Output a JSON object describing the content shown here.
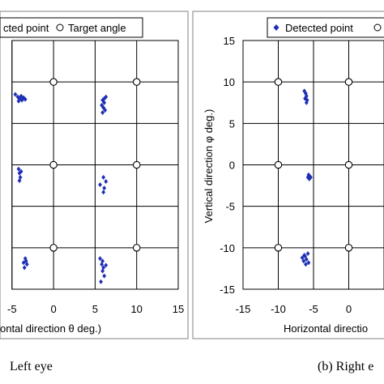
{
  "chart_data": [
    {
      "type": "scatter",
      "panel": "left",
      "caption": "Left eye",
      "xlabel": "ontal direction θ deg.)",
      "ylabel": "",
      "xlim": [
        -5,
        15
      ],
      "ylim": [
        -15,
        15
      ],
      "x_ticks": [
        -5,
        0,
        5,
        10,
        15
      ],
      "y_ticks": [],
      "grid": true,
      "legend": {
        "position": "top",
        "entries": [
          "cted point",
          "Target angle"
        ]
      },
      "series": [
        {
          "name": "Detected point",
          "marker": "diamond",
          "color": "#1f2fb5",
          "points": [
            [
              -4.6,
              8.5
            ],
            [
              -4.3,
              8.2
            ],
            [
              -4.1,
              8.0
            ],
            [
              -3.9,
              8.3
            ],
            [
              -3.8,
              7.8
            ],
            [
              -3.6,
              8.1
            ],
            [
              -4.2,
              7.7
            ],
            [
              -3.4,
              7.9
            ],
            [
              5.9,
              7.8
            ],
            [
              6.1,
              7.5
            ],
            [
              6.3,
              8.2
            ],
            [
              5.8,
              7.2
            ],
            [
              6.0,
              6.9
            ],
            [
              6.2,
              6.6
            ],
            [
              5.9,
              6.3
            ],
            [
              6.1,
              8.0
            ],
            [
              -4.2,
              -0.5
            ],
            [
              -4.1,
              -1.0
            ],
            [
              -4.0,
              -1.5
            ],
            [
              -4.1,
              -1.9
            ],
            [
              -3.9,
              -0.8
            ],
            [
              5.6,
              -2.4
            ],
            [
              6.0,
              -1.5
            ],
            [
              6.3,
              -2.0
            ],
            [
              6.1,
              -2.8
            ],
            [
              6.0,
              -3.3
            ],
            [
              -3.6,
              -11.8
            ],
            [
              -3.4,
              -11.3
            ],
            [
              -3.2,
              -12.0
            ],
            [
              -3.5,
              -12.4
            ],
            [
              -3.3,
              -11.6
            ],
            [
              5.6,
              -11.3
            ],
            [
              5.8,
              -12.0
            ],
            [
              6.0,
              -12.4
            ],
            [
              6.3,
              -12.1
            ],
            [
              5.9,
              -12.8
            ],
            [
              6.1,
              -13.4
            ],
            [
              5.7,
              -14.1
            ],
            [
              5.9,
              -11.6
            ]
          ]
        },
        {
          "name": "Target angle",
          "marker": "circle-open",
          "color": "#000000",
          "points": [
            [
              0,
              10
            ],
            [
              10,
              10
            ],
            [
              0,
              0
            ],
            [
              10,
              0
            ],
            [
              0,
              -10
            ],
            [
              10,
              -10
            ]
          ]
        }
      ]
    },
    {
      "type": "scatter",
      "panel": "right",
      "caption": "(b) Right e",
      "xlabel": "Horizontal directio",
      "ylabel": "Vertical direction φ deg.)",
      "xlim": [
        -15,
        5
      ],
      "ylim": [
        -15,
        15
      ],
      "x_ticks": [
        -15,
        -10,
        -5,
        0
      ],
      "y_ticks": [
        15,
        10,
        5,
        0,
        -5,
        -10,
        -15
      ],
      "grid": true,
      "legend": {
        "position": "top",
        "entries": [
          "Detected point"
        ]
      },
      "series": [
        {
          "name": "Detected point",
          "marker": "diamond",
          "color": "#1f2fb5",
          "points": [
            [
              -6.3,
              8.9
            ],
            [
              -6.1,
              8.6
            ],
            [
              -6.0,
              8.3
            ],
            [
              -6.2,
              8.0
            ],
            [
              -5.9,
              7.8
            ],
            [
              -6.0,
              7.5
            ],
            [
              -5.7,
              -1.2
            ],
            [
              -5.5,
              -1.4
            ],
            [
              -5.6,
              -1.7
            ],
            [
              -5.4,
              -1.5
            ],
            [
              -5.8,
              -1.5
            ],
            [
              -6.6,
              -11.2
            ],
            [
              -6.3,
              -10.9
            ],
            [
              -6.0,
              -11.4
            ],
            [
              -5.8,
              -10.7
            ],
            [
              -6.4,
              -11.6
            ],
            [
              -6.1,
              -12.0
            ],
            [
              -5.7,
              -11.8
            ],
            [
              -6.2,
              -11.0
            ]
          ]
        },
        {
          "name": "Target angle",
          "marker": "circle-open",
          "color": "#000000",
          "points": [
            [
              -10,
              10
            ],
            [
              0,
              10
            ],
            [
              -10,
              0
            ],
            [
              0,
              0
            ],
            [
              -10,
              -10
            ],
            [
              0,
              -10
            ]
          ]
        }
      ]
    }
  ]
}
